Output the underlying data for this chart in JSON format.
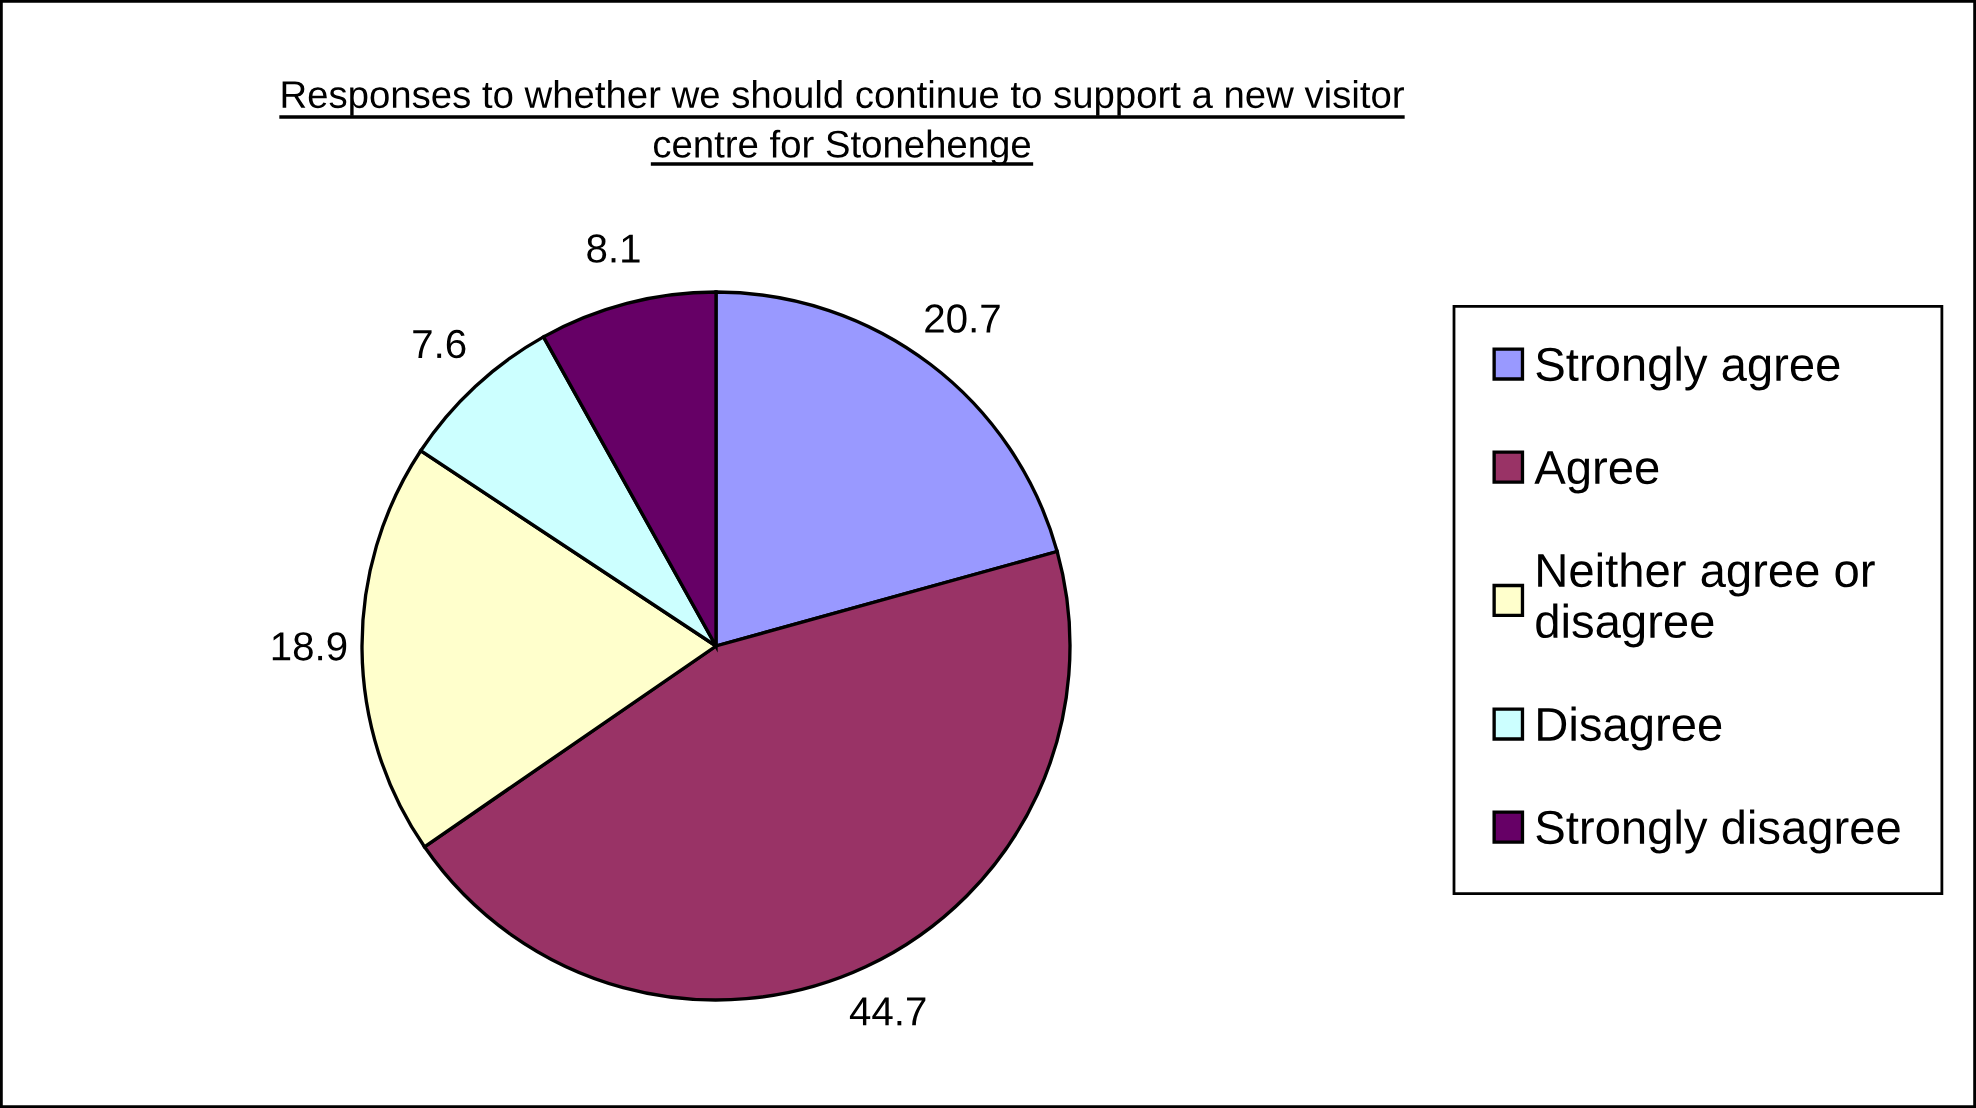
{
  "chart_data": {
    "type": "pie",
    "title": "Responses to whether we should continue to support a new visitor\ncentre for Stonehenge",
    "categories": [
      "Strongly agree",
      "Agree",
      "Neither agree or\ndisagree",
      "Disagree",
      "Strongly disagree"
    ],
    "values": [
      20.7,
      44.7,
      18.9,
      7.6,
      8.1
    ],
    "colors": [
      "#9999ff",
      "#993366",
      "#ffffcc",
      "#ccffff",
      "#660066"
    ],
    "data_labels": true,
    "legend": "right"
  }
}
